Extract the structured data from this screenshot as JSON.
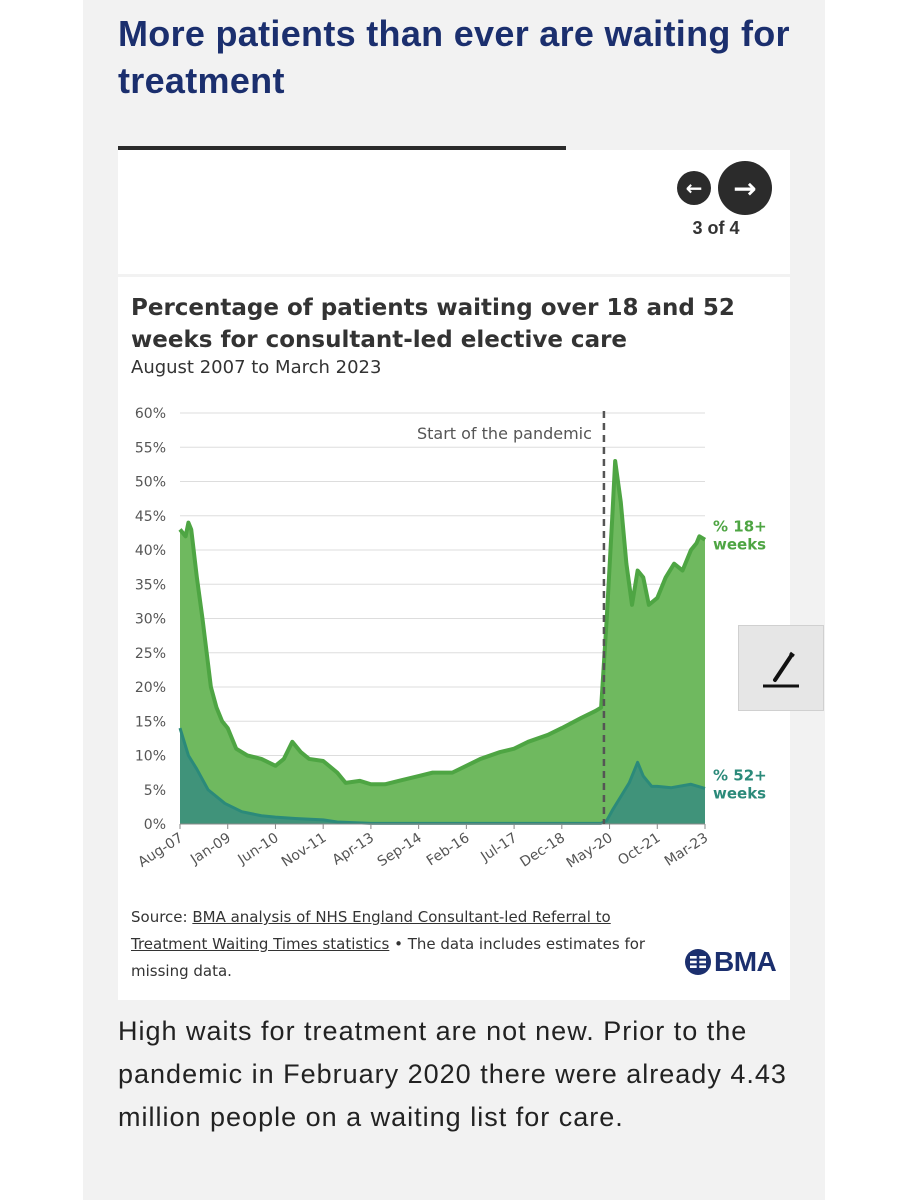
{
  "article": {
    "headline": "More patients than ever are waiting for treatment",
    "body": "High waits for treatment are not new. Prior to the pandemic in February 2020 there were already 4.43 million people on a waiting list for care."
  },
  "carousel": {
    "pager": "3 of 4",
    "prev_icon": "arrow-left-icon",
    "next_icon": "arrow-right-icon"
  },
  "chart_data": {
    "type": "area",
    "title": "Percentage of patients waiting over 18 and 52 weeks for consultant-led elective care",
    "subtitle": "August 2007 to March 2023",
    "annotation": "Start of the pandemic",
    "annotation_x": "Mar-20",
    "ylim": [
      0,
      60
    ],
    "yticks": [
      "0%",
      "5%",
      "10%",
      "15%",
      "20%",
      "25%",
      "30%",
      "35%",
      "40%",
      "45%",
      "50%",
      "55%",
      "60%"
    ],
    "xlim": [
      "Aug-07",
      "Mar-23"
    ],
    "xticks": [
      "Aug-07",
      "Jan-09",
      "Jun-10",
      "Nov-11",
      "Apr-13",
      "Sep-14",
      "Feb-16",
      "Jul-17",
      "Dec-18",
      "May-20",
      "Oct-21",
      "Mar-23"
    ],
    "grid": true,
    "series": [
      {
        "name": "% 18+ weeks",
        "label": "% 18+ weeks",
        "color": "#4ea543",
        "fill": "#6fb95f",
        "points": [
          [
            "Aug-07",
            43
          ],
          [
            "Oct-07",
            42
          ],
          [
            "Nov-07",
            44
          ],
          [
            "Dec-07",
            43
          ],
          [
            "Feb-08",
            36
          ],
          [
            "Apr-08",
            30
          ],
          [
            "Jul-08",
            20
          ],
          [
            "Sep-08",
            17
          ],
          [
            "Nov-08",
            15
          ],
          [
            "Jan-09",
            14
          ],
          [
            "Apr-09",
            11
          ],
          [
            "Aug-09",
            10
          ],
          [
            "Jan-10",
            9.5
          ],
          [
            "Jun-10",
            8.5
          ],
          [
            "Sep-10",
            9.5
          ],
          [
            "Dec-10",
            12
          ],
          [
            "Mar-11",
            10.5
          ],
          [
            "Jun-11",
            9.5
          ],
          [
            "Nov-11",
            9.2
          ],
          [
            "Apr-12",
            7.5
          ],
          [
            "Jul-12",
            6
          ],
          [
            "Dec-12",
            6.3
          ],
          [
            "Apr-13",
            5.8
          ],
          [
            "Sep-13",
            5.8
          ],
          [
            "Feb-14",
            6.3
          ],
          [
            "Sep-14",
            7
          ],
          [
            "Feb-15",
            7.5
          ],
          [
            "Sep-15",
            7.5
          ],
          [
            "Feb-16",
            8.5
          ],
          [
            "Jul-16",
            9.5
          ],
          [
            "Feb-17",
            10.5
          ],
          [
            "Jul-17",
            11
          ],
          [
            "Dec-17",
            12
          ],
          [
            "Jul-18",
            13
          ],
          [
            "Dec-18",
            14
          ],
          [
            "Jul-19",
            15.5
          ],
          [
            "Dec-19",
            16.5
          ],
          [
            "Feb-20",
            17
          ],
          [
            "Apr-20",
            30
          ],
          [
            "Jun-20",
            45
          ],
          [
            "Jul-20",
            53
          ],
          [
            "Sep-20",
            47
          ],
          [
            "Nov-20",
            38
          ],
          [
            "Jan-21",
            32
          ],
          [
            "Mar-21",
            37
          ],
          [
            "May-21",
            36
          ],
          [
            "Jul-21",
            32
          ],
          [
            "Oct-21",
            33
          ],
          [
            "Jan-22",
            36
          ],
          [
            "Apr-22",
            38
          ],
          [
            "Jul-22",
            37
          ],
          [
            "Oct-22",
            40
          ],
          [
            "Dec-22",
            41
          ],
          [
            "Jan-23",
            42
          ],
          [
            "Mar-23",
            41.5
          ]
        ]
      },
      {
        "name": "% 52+ weeks",
        "label": "% 52+ weeks",
        "color": "#2b8a7a",
        "fill": "#3b8f7d",
        "points": [
          [
            "Aug-07",
            14
          ],
          [
            "Nov-07",
            10
          ],
          [
            "Feb-08",
            8
          ],
          [
            "Jun-08",
            5
          ],
          [
            "Dec-08",
            3
          ],
          [
            "Jun-09",
            1.8
          ],
          [
            "Jan-10",
            1.2
          ],
          [
            "Jun-10",
            1
          ],
          [
            "Jan-11",
            0.8
          ],
          [
            "Nov-11",
            0.6
          ],
          [
            "Apr-12",
            0.3
          ],
          [
            "Apr-13",
            0.1
          ],
          [
            "Dec-18",
            0.1
          ],
          [
            "Feb-20",
            0.1
          ],
          [
            "Apr-20",
            0.5
          ],
          [
            "Jun-20",
            2
          ],
          [
            "Sep-20",
            4
          ],
          [
            "Dec-20",
            6
          ],
          [
            "Mar-21",
            9
          ],
          [
            "May-21",
            7
          ],
          [
            "Aug-21",
            5.5
          ],
          [
            "Oct-21",
            5.5
          ],
          [
            "Mar-22",
            5.3
          ],
          [
            "Oct-22",
            5.8
          ],
          [
            "Mar-23",
            5.2
          ]
        ]
      }
    ]
  },
  "source": {
    "prefix": "Source: ",
    "link": "BMA analysis of NHS England Consultant-led Referral to Treatment Waiting Times statistics",
    "suffix": " • The data includes estimates for missing data."
  },
  "brand": {
    "logo_text": "BMA",
    "logo_icon": "bma-emblem-icon"
  },
  "tools": {
    "edit_icon": "pen-icon"
  }
}
